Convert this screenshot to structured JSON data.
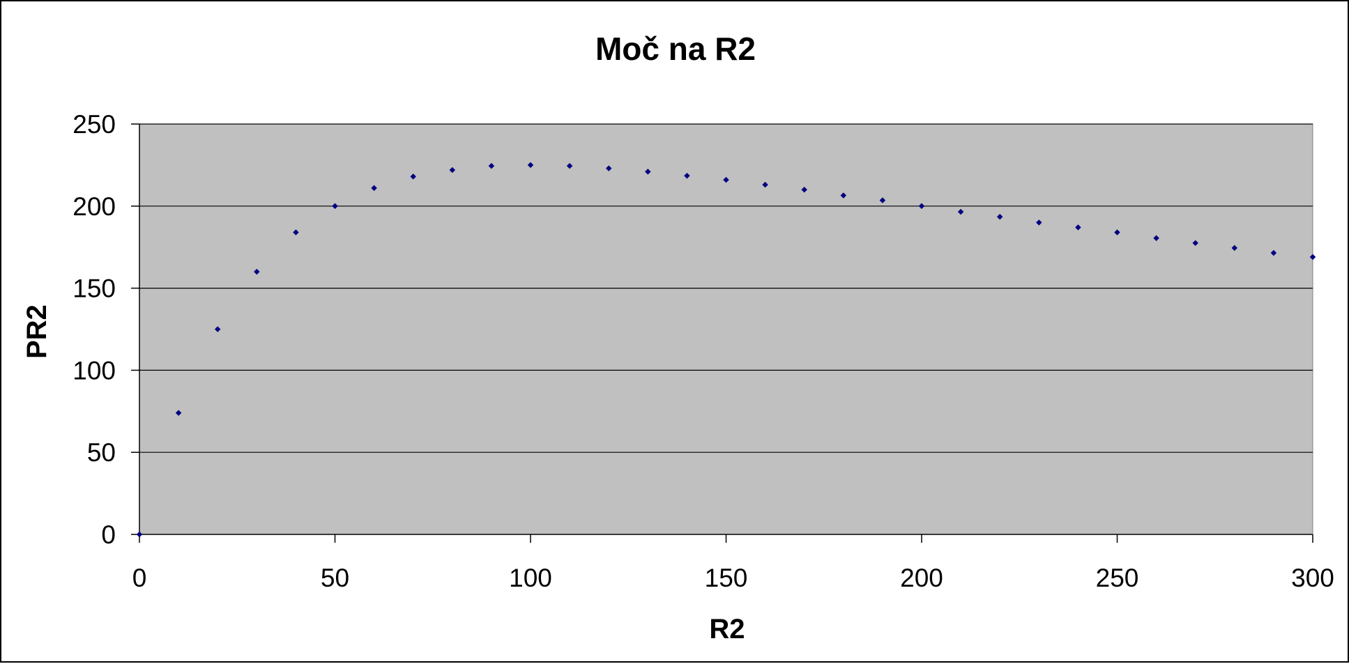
{
  "chart_data": {
    "type": "scatter",
    "title": "Moč na R2",
    "xlabel": "R2",
    "ylabel": "PR2",
    "xlim": [
      0,
      300
    ],
    "ylim": [
      0,
      250
    ],
    "x_ticks": [
      0,
      50,
      100,
      150,
      200,
      250,
      300
    ],
    "y_ticks": [
      0,
      50,
      100,
      150,
      200,
      250
    ],
    "grid": "horizontal",
    "plot_background": "#c0c0c0",
    "gridline_color": "#000000",
    "marker_color": "#000080",
    "series": [
      {
        "x": [
          0,
          10,
          20,
          30,
          40,
          50,
          60,
          70,
          80,
          90,
          100,
          110,
          120,
          130,
          140,
          150,
          160,
          170,
          180,
          190,
          200,
          210,
          220,
          230,
          240,
          250,
          260,
          270,
          280,
          290,
          300
        ],
        "values": [
          0,
          74,
          125,
          160,
          184,
          200,
          211,
          218,
          222,
          224.5,
          225,
          224.5,
          223,
          221,
          218.5,
          216,
          213,
          210,
          206.5,
          203.5,
          200,
          196.5,
          193.5,
          190,
          187,
          184,
          180.5,
          177.5,
          174.5,
          171.5,
          169
        ]
      }
    ]
  }
}
